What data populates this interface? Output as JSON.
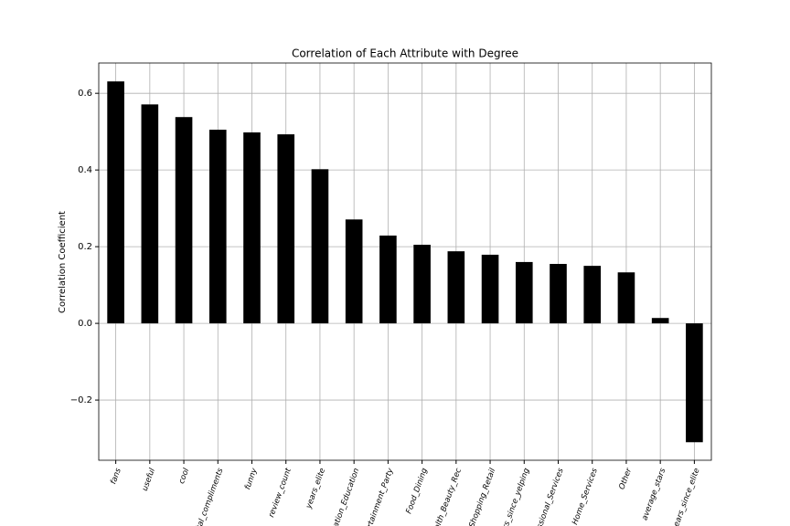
{
  "chart_data": {
    "type": "bar",
    "title": "Correlation of Each Attribute with Degree",
    "y_label": "Correlation Coefficient",
    "categories": [
      "fans",
      "useful",
      "cool",
      "tal_compliments",
      "funny",
      "review_count",
      "years_elite",
      "ation_Education",
      "rtainment_Party",
      "Food_Dining",
      "alth_Beauty_Rec",
      "Shopping_Retail",
      "rs_since_yelping",
      "ssional_Services",
      "Home_Services",
      "Other",
      "average_stars",
      "ears_since_elite"
    ],
    "values": [
      0.631,
      0.571,
      0.538,
      0.505,
      0.498,
      0.493,
      0.402,
      0.271,
      0.229,
      0.205,
      0.188,
      0.179,
      0.16,
      0.155,
      0.15,
      0.133,
      0.014,
      -0.31
    ],
    "color": "#000000",
    "ylim": [
      -0.357,
      0.679
    ],
    "yticks": [
      {
        "value": -0.2,
        "label": "−0.2"
      },
      {
        "value": 0,
        "label": "0.0"
      },
      0.2,
      0.4,
      0.6
    ],
    "grid": true
  }
}
